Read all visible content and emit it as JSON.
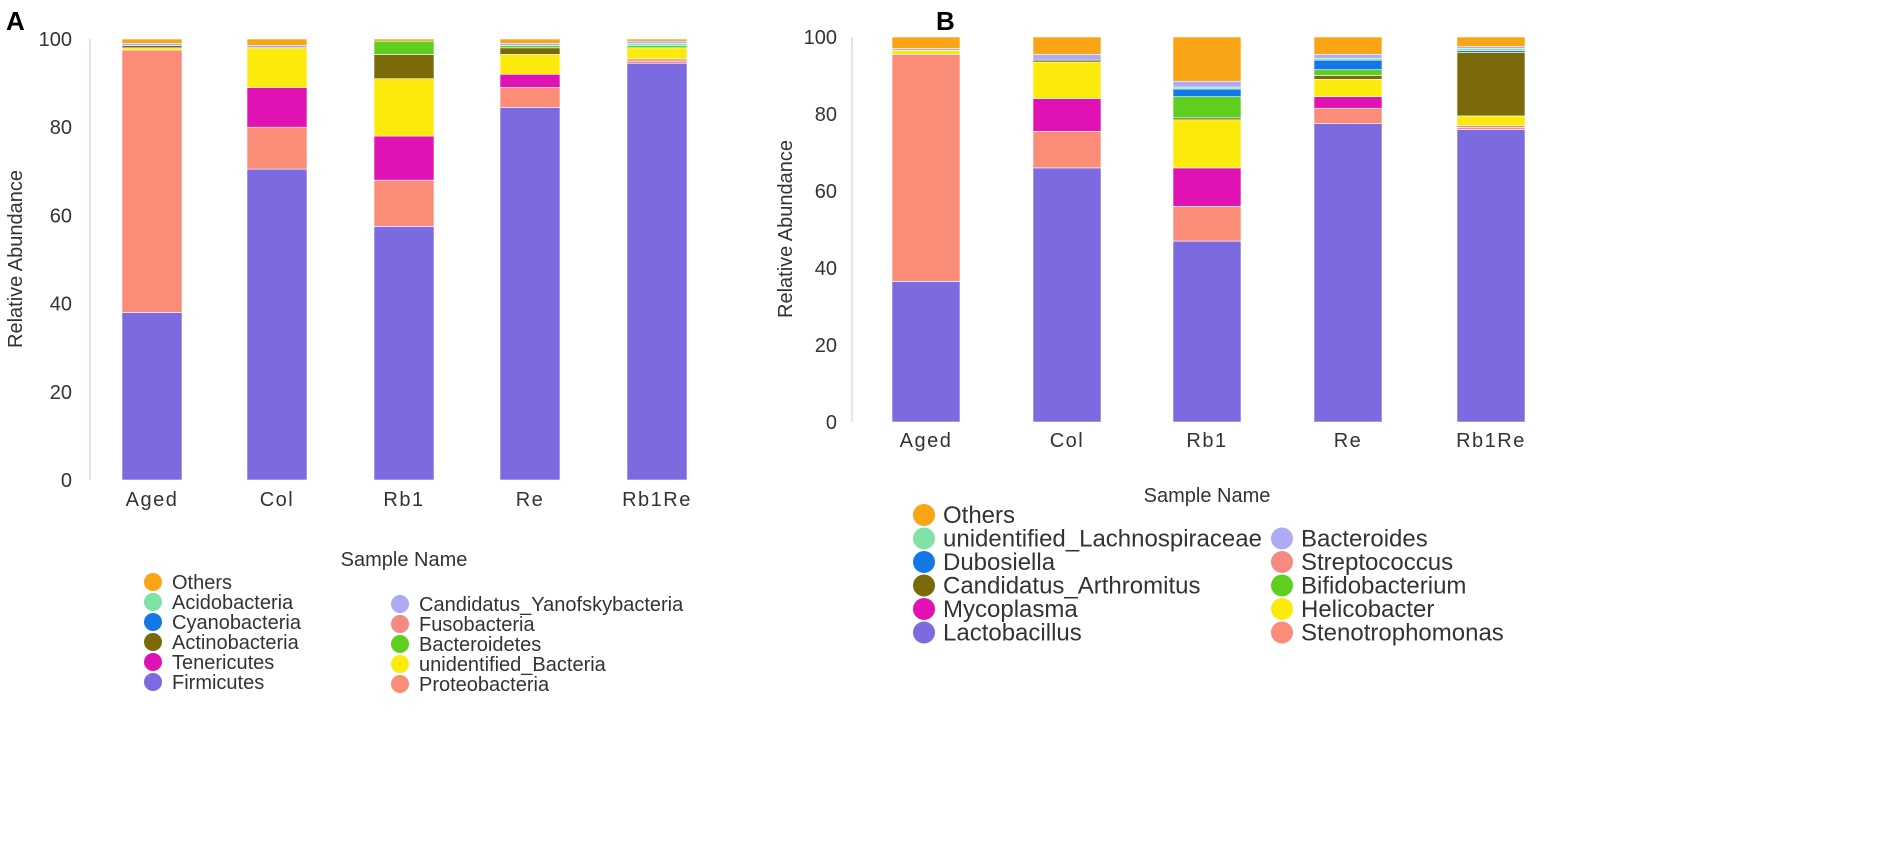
{
  "chart_data": [
    {
      "panel": "A",
      "type": "bar",
      "stacked": true,
      "xlabel": "Sample Name",
      "ylabel": "Relative Abundance",
      "ylim": [
        0,
        100
      ],
      "yticks": [
        0,
        20,
        40,
        60,
        80,
        100
      ],
      "categories": [
        "Aged",
        "Col",
        "Rb1",
        "Re",
        "Rb1Re"
      ],
      "series": [
        {
          "name": "Firmicutes",
          "color": "#7b6ae0",
          "values": [
            38,
            70.5,
            57.5,
            84.5,
            94.5
          ]
        },
        {
          "name": "Proteobacteria",
          "color": "#fa8c78",
          "values": [
            59.5,
            9.5,
            10.5,
            4.5,
            0.5
          ]
        },
        {
          "name": "Fusobacteria",
          "color": "#f48a80",
          "values": [
            0,
            0,
            0,
            0,
            0.5
          ]
        },
        {
          "name": "Tenericutes",
          "color": "#e012b4",
          "values": [
            0,
            9,
            10,
            3,
            0
          ]
        },
        {
          "name": "unidentified_Bacteria",
          "color": "#fcea0c",
          "values": [
            0.5,
            9,
            13,
            4.5,
            2.5
          ]
        },
        {
          "name": "Actinobacteria",
          "color": "#7a6a0a",
          "values": [
            0.5,
            0,
            5.5,
            1.5,
            0
          ]
        },
        {
          "name": "Bacteroidetes",
          "color": "#5ecf1f",
          "values": [
            0,
            0,
            3,
            0.5,
            0.5
          ]
        },
        {
          "name": "Cyanobacteria",
          "color": "#1478e4",
          "values": [
            0,
            0,
            0,
            0,
            0
          ]
        },
        {
          "name": "Acidobacteria",
          "color": "#7fe2a6",
          "values": [
            0,
            0,
            0,
            0,
            0.5
          ]
        },
        {
          "name": "Candidatus_Yanofskybacteria",
          "color": "#aeaaf4",
          "values": [
            0.5,
            0.5,
            0,
            0.5,
            0.5
          ]
        },
        {
          "name": "Others",
          "color": "#f9a515",
          "values": [
            1,
            1.5,
            0.5,
            1,
            0.5
          ]
        }
      ],
      "legend": {
        "left": [
          "Others",
          "Acidobacteria",
          "Cyanobacteria",
          "Actinobacteria",
          "Tenericutes",
          "Firmicutes"
        ],
        "right": [
          "Candidatus_Yanofskybacteria",
          "Fusobacteria",
          "Bacteroidetes",
          "unidentified_Bacteria",
          "Proteobacteria"
        ]
      }
    },
    {
      "panel": "B",
      "type": "bar",
      "stacked": true,
      "xlabel": "Sample Name",
      "ylabel": "Relative Abundance",
      "ylim": [
        0,
        100
      ],
      "yticks": [
        0,
        20,
        40,
        60,
        80,
        100
      ],
      "categories": [
        "Aged",
        "Col",
        "Rb1",
        "Re",
        "Rb1Re"
      ],
      "series": [
        {
          "name": "Lactobacillus",
          "color": "#7b6ae0",
          "values": [
            36.5,
            66,
            47,
            77.5,
            76
          ]
        },
        {
          "name": "Stenotrophomonas",
          "color": "#fa8c78",
          "values": [
            59,
            9.5,
            9,
            4,
            0.5
          ]
        },
        {
          "name": "Streptococcus",
          "color": "#f48a80",
          "values": [
            0,
            0,
            0,
            0,
            0.5
          ]
        },
        {
          "name": "Mycoplasma",
          "color": "#e012b4",
          "values": [
            0,
            8.5,
            10,
            3,
            0
          ]
        },
        {
          "name": "Helicobacter",
          "color": "#fcea0c",
          "values": [
            1,
            9.5,
            12.5,
            4.5,
            2.5
          ]
        },
        {
          "name": "Candidatus_Arthromitus",
          "color": "#7a6a0a",
          "values": [
            0,
            0.5,
            0.5,
            1,
            16.5
          ]
        },
        {
          "name": "Bifidobacterium",
          "color": "#5ecf1f",
          "values": [
            0,
            0,
            5.5,
            1.5,
            0
          ]
        },
        {
          "name": "Dubosiella",
          "color": "#1478e4",
          "values": [
            0,
            0,
            2,
            2.5,
            0.5
          ]
        },
        {
          "name": "unidentified_Lachnospiraceae",
          "color": "#7fe2a6",
          "values": [
            0,
            0,
            0.5,
            0.5,
            0.5
          ]
        },
        {
          "name": "Bacteroides",
          "color": "#aeaaf4",
          "values": [
            0.5,
            1.5,
            1.5,
            1,
            0.5
          ]
        },
        {
          "name": "Others",
          "color": "#f9a515",
          "values": [
            3,
            4.5,
            11.5,
            4.5,
            2.5
          ]
        }
      ],
      "legend": {
        "left": [
          "Others",
          "unidentified_Lachnospiraceae",
          "Dubosiella",
          "Candidatus_Arthromitus",
          "Mycoplasma",
          "Lactobacillus"
        ],
        "right": [
          "Bacteroides",
          "Streptococcus",
          "Bifidobacterium",
          "Helicobacter",
          "Stenotrophomonas"
        ]
      }
    }
  ]
}
